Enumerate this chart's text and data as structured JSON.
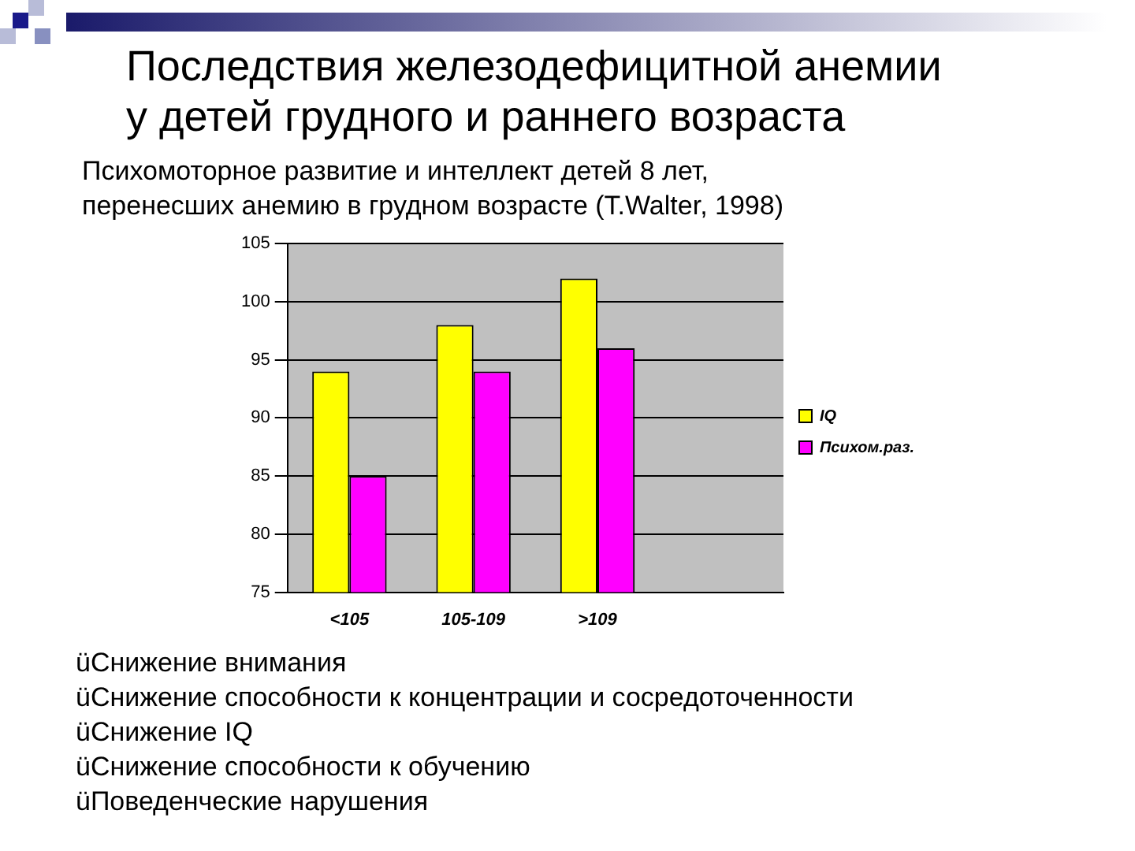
{
  "chart_data": {
    "type": "bar",
    "title": "Последствия железодефицитной анемии\nу детей грудного и раннего возраста",
    "subtitle": "Психомоторное развитие и интеллект детей 8 лет,\nперенесших анемию в грудном возрасте (T.Walter, 1998)",
    "categories": [
      "<105",
      "105-109",
      ">109",
      null
    ],
    "series": [
      {
        "name": "IQ",
        "color": "#ffff00",
        "values": [
          94,
          98,
          102,
          null
        ]
      },
      {
        "name": "Психом.раз.",
        "color": "#ff00ff",
        "values": [
          85,
          94,
          96,
          null
        ]
      }
    ],
    "ylim": [
      75,
      105
    ],
    "yticks": [
      75,
      80,
      85,
      90,
      95,
      100,
      105
    ],
    "grid": "y",
    "legend": "right",
    "annotations": [
      "üСнижение внимания",
      "üСнижение способности к концентрации и сосредоточенности",
      "üСнижение IQ",
      "üСнижение способности к обучению",
      "üПоведенческие нарушения"
    ]
  }
}
